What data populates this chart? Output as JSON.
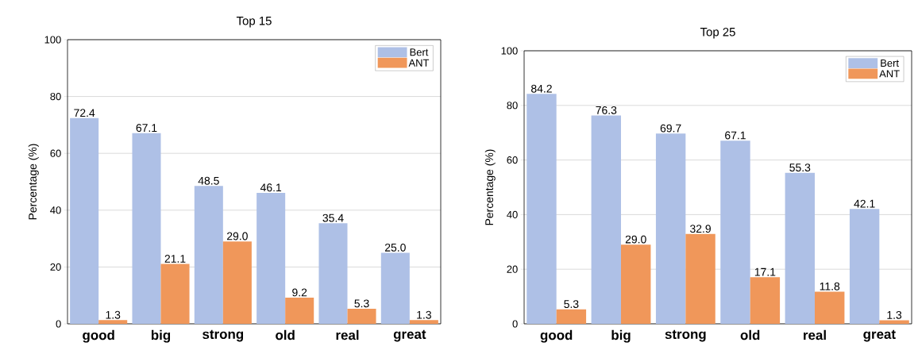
{
  "chart_data": [
    {
      "type": "bar",
      "title": "Top 15",
      "ylabel": "Percentage (%)",
      "categories": [
        "good",
        "big",
        "strong",
        "old",
        "real",
        "great"
      ],
      "series": [
        {
          "name": "Bert",
          "color": "#aec0e6",
          "values": [
            72.4,
            67.1,
            48.5,
            46.1,
            35.4,
            25.0
          ],
          "value_labels": [
            "72.4",
            "67.1",
            "48.5",
            "46.1",
            "35.4",
            "25.0"
          ]
        },
        {
          "name": "ANT",
          "color": "#f0975a",
          "values": [
            1.3,
            21.1,
            29.0,
            9.2,
            5.3,
            1.3
          ],
          "value_labels": [
            "1.3",
            "21.1",
            "29.0",
            "9.2",
            "5.3",
            "1.3"
          ]
        }
      ],
      "ylim": [
        0,
        100
      ],
      "yticks": [
        0,
        20,
        40,
        60,
        80,
        100
      ],
      "grid": "y",
      "legend": "top right"
    },
    {
      "type": "bar",
      "title": "Top 25",
      "ylabel": "Percentage (%)",
      "categories": [
        "good",
        "big",
        "strong",
        "old",
        "real",
        "great"
      ],
      "series": [
        {
          "name": "Bert",
          "color": "#aec0e6",
          "values": [
            84.2,
            76.3,
            69.7,
            67.1,
            55.3,
            42.1
          ],
          "value_labels": [
            "84.2",
            "76.3",
            "69.7",
            "67.1",
            "55.3",
            "42.1"
          ]
        },
        {
          "name": "ANT",
          "color": "#f0975a",
          "values": [
            5.3,
            29.0,
            32.9,
            17.1,
            11.8,
            1.3
          ],
          "value_labels": [
            "5.3",
            "29.0",
            "32.9",
            "17.1",
            "11.8",
            "1.3"
          ]
        }
      ],
      "ylim": [
        0,
        100
      ],
      "yticks": [
        0,
        20,
        40,
        60,
        80,
        100
      ],
      "grid": "y",
      "legend": "top right"
    }
  ]
}
